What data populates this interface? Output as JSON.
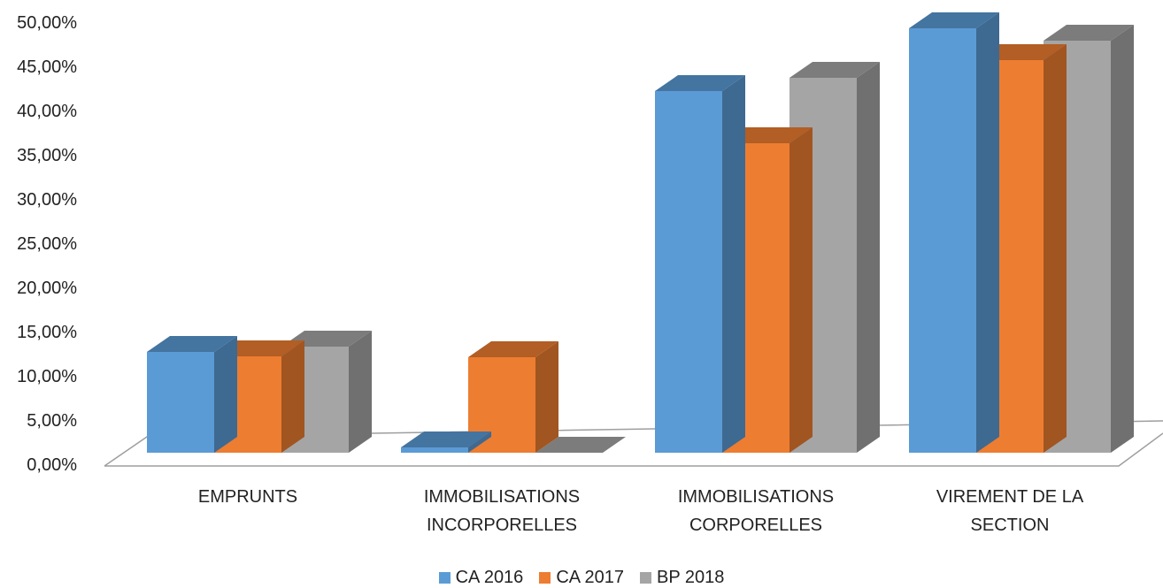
{
  "chart_data": {
    "type": "bar",
    "title": "",
    "xlabel": "",
    "ylabel": "",
    "ylim": [
      0,
      50
    ],
    "ytick_values": [
      0,
      5,
      10,
      15,
      20,
      25,
      30,
      35,
      40,
      45,
      50
    ],
    "ytick_labels": [
      "0,00%",
      "5,00%",
      "10,00%",
      "15,00%",
      "20,00%",
      "25,00%",
      "30,00%",
      "35,00%",
      "40,00%",
      "45,00%",
      "50,00%"
    ],
    "categories": [
      [
        "EMPRUNTS"
      ],
      [
        "IMMOBILISATIONS",
        "INCORPORELLES"
      ],
      [
        "IMMOBILISATIONS",
        "CORPORELLES"
      ],
      [
        "VIREMENT DE LA",
        "SECTION"
      ]
    ],
    "series": [
      {
        "name": "CA 2016",
        "color": "#5b9bd5",
        "values": [
          11.4,
          0.6,
          40.9,
          48.0
        ]
      },
      {
        "name": "CA 2017",
        "color": "#ed7d31",
        "values": [
          10.9,
          10.8,
          35.0,
          44.4
        ]
      },
      {
        "name": "BP 2018",
        "color": "#a5a5a5",
        "values": [
          12.0,
          0.0,
          42.4,
          46.6
        ]
      }
    ],
    "legend_position": "bottom",
    "grid": false
  }
}
